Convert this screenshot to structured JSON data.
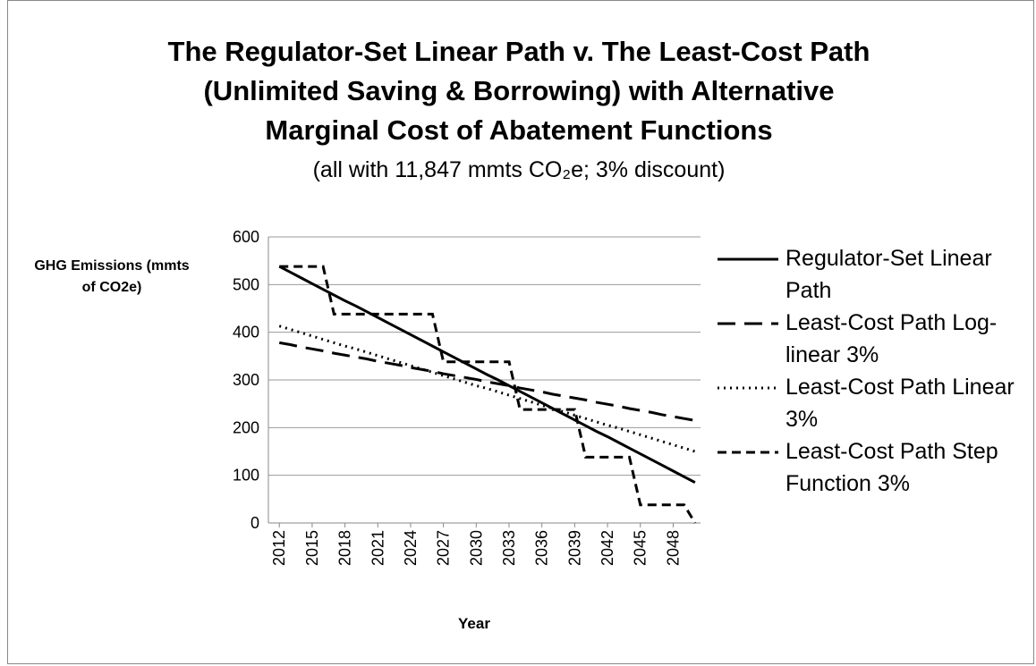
{
  "chart_data": {
    "type": "line",
    "title": "The Regulator-Set Linear Path v. The Least-Cost Path (Unlimited Saving & Borrowing) with Alternative Marginal Cost of Abatement Functions",
    "subtitle": "(all with 11,847 mmts CO₂e; 3% discount)",
    "x_label": "Year",
    "y_label": "GHG Emissions (mmts of CO2e)",
    "x": [
      2012,
      2013,
      2014,
      2015,
      2016,
      2017,
      2018,
      2019,
      2020,
      2021,
      2022,
      2023,
      2024,
      2025,
      2026,
      2027,
      2028,
      2029,
      2030,
      2031,
      2032,
      2033,
      2034,
      2035,
      2036,
      2037,
      2038,
      2039,
      2040,
      2041,
      2042,
      2043,
      2044,
      2045,
      2046,
      2047,
      2048,
      2049,
      2050
    ],
    "xlim": [
      2011,
      2050.5
    ],
    "xticks": [
      2012,
      2015,
      2018,
      2021,
      2024,
      2027,
      2030,
      2033,
      2036,
      2039,
      2042,
      2045,
      2048
    ],
    "ylim": [
      0,
      600
    ],
    "yticks": [
      0,
      100,
      200,
      300,
      400,
      500,
      600
    ],
    "grid": true,
    "legend": "right",
    "series": [
      {
        "name": "Regulator-Set Linear Path",
        "color": "#000000",
        "dash": "solid",
        "values": [
          538,
          526,
          514,
          502,
          490,
          478,
          466,
          455,
          443,
          431,
          419,
          407,
          395,
          383,
          371,
          359,
          347,
          335,
          323,
          311,
          300,
          288,
          276,
          264,
          252,
          240,
          228,
          216,
          204,
          192,
          181,
          169,
          157,
          145,
          133,
          121,
          109,
          97,
          85
        ]
      },
      {
        "name": "Least-Cost Path Log-linear 3%",
        "color": "#000000",
        "dash": "long-dash",
        "values": [
          378,
          374,
          369,
          365,
          361,
          356,
          352,
          348,
          344,
          339,
          335,
          331,
          326,
          322,
          318,
          313,
          309,
          305,
          301,
          296,
          292,
          288,
          283,
          279,
          275,
          270,
          266,
          262,
          258,
          253,
          249,
          245,
          240,
          236,
          232,
          227,
          223,
          219,
          215
        ]
      },
      {
        "name": "Least-Cost Path Linear 3%",
        "color": "#000000",
        "dash": "dot",
        "values": [
          413,
          406,
          399,
          392,
          385,
          378,
          371,
          365,
          358,
          351,
          344,
          337,
          330,
          323,
          316,
          309,
          302,
          295,
          288,
          282,
          275,
          268,
          261,
          254,
          247,
          240,
          233,
          226,
          219,
          212,
          205,
          199,
          192,
          185,
          178,
          171,
          164,
          157,
          150
        ]
      },
      {
        "name": "Least-Cost Path Step Function 3%",
        "color": "#000000",
        "dash": "dash",
        "values": [
          538,
          538,
          538,
          538,
          538,
          438,
          438,
          438,
          438,
          438,
          438,
          438,
          438,
          438,
          438,
          338,
          338,
          338,
          338,
          338,
          338,
          338,
          238,
          238,
          238,
          238,
          238,
          238,
          138,
          138,
          138,
          138,
          138,
          38,
          38,
          38,
          38,
          38,
          0
        ]
      }
    ]
  }
}
